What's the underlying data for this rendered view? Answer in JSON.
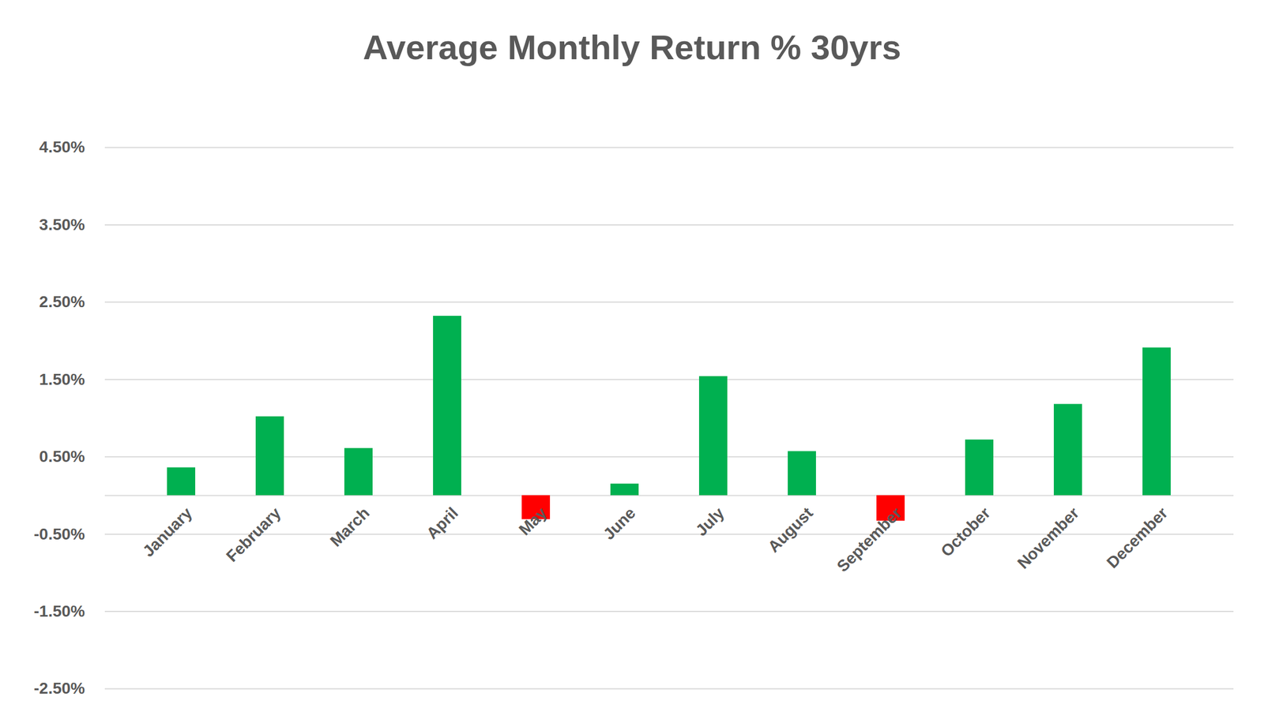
{
  "chart_data": {
    "type": "bar",
    "title": "Average Monthly Return % 30yrs",
    "categories": [
      "January",
      "February",
      "March",
      "April",
      "May",
      "June",
      "July",
      "August",
      "September",
      "October",
      "November",
      "December"
    ],
    "values": [
      0.36,
      1.02,
      0.61,
      2.32,
      -0.31,
      0.15,
      1.54,
      0.57,
      -0.33,
      0.72,
      1.18,
      1.91
    ],
    "colors": [
      "#00b050",
      "#00b050",
      "#00b050",
      "#00b050",
      "#ff0000",
      "#00b050",
      "#00b050",
      "#00b050",
      "#ff0000",
      "#00b050",
      "#00b050",
      "#00b050"
    ],
    "ylim": [
      -2.5,
      4.5
    ],
    "yticks": [
      {
        "value": -2.5,
        "label": "-2.50%"
      },
      {
        "value": -1.5,
        "label": "-1.50%"
      },
      {
        "value": -0.5,
        "label": "-0.50%"
      },
      {
        "value": 0.5,
        "label": "0.50%"
      },
      {
        "value": 1.5,
        "label": "1.50%"
      },
      {
        "value": 2.5,
        "label": "2.50%"
      },
      {
        "value": 3.5,
        "label": "3.50%"
      },
      {
        "value": 4.5,
        "label": "4.50%"
      }
    ],
    "grid": true
  }
}
